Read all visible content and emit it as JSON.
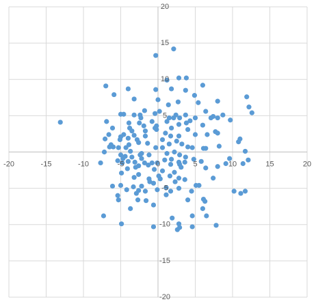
{
  "chart_data": {
    "type": "scatter",
    "color": "#5b9bd5",
    "grid": true,
    "xlim": [
      -20,
      20
    ],
    "ylim": [
      -20,
      20
    ],
    "xticks": [
      -20,
      -15,
      -10,
      -5,
      0,
      5,
      10,
      15,
      20
    ],
    "yticks": [
      -20,
      -15,
      -10,
      -5,
      5,
      10,
      15,
      20
    ],
    "x": [
      2.1,
      -0.3,
      2.8,
      3.8,
      1.2,
      -7.0,
      6.0,
      1.8,
      -4.0,
      3.7,
      -0.3,
      -5.9,
      11.9,
      4.9,
      -3.2,
      0,
      8.0,
      2.7,
      5.4,
      1.4,
      12.2,
      -1.8,
      6.4,
      12.6,
      0.2,
      -0.4,
      -5.0,
      -4.6,
      -2.4,
      2.4,
      -3.2,
      3.7,
      8.7,
      7.4,
      -2.3,
      2.9,
      7.1,
      8.0,
      1.5,
      2.1,
      5.0,
      9.7,
      -6.9,
      -13.1,
      4.3,
      3.8,
      -0.8,
      1.2,
      -2.5,
      -3.9,
      2.8,
      6.0,
      -0.2,
      -1.9,
      -6.1,
      -3.8,
      -0.4,
      1.8,
      -3.5,
      -1.7,
      -0.2,
      4.0,
      7.7,
      8.0,
      1.0,
      -6.6,
      -4.6,
      -3.2,
      5.0,
      6.6,
      -1.7,
      1.7,
      2.8,
      -5.0,
      -4.0,
      11.0,
      -7.1,
      -5.1,
      -2.8,
      0.6,
      2.5,
      10.8,
      -2.6,
      -1.4,
      1.5,
      3.2,
      -3.9,
      8.2,
      -6.3,
      -6.5,
      -5.3,
      -4.3,
      -6.0,
      -0.3,
      0.6,
      4.0,
      4.6,
      6.1,
      6.4,
      -3.7,
      11.7,
      -7.2,
      2.2,
      -2.2,
      1.2,
      -5.0,
      -2.4,
      -1.2,
      2.9,
      3.7,
      -4.4,
      -3.5,
      -4.7,
      -2.2,
      1.8,
      4.8,
      0.9,
      9.6,
      -5.4,
      -4.0,
      12.1,
      5.8,
      -7.7,
      -0.1,
      -4.8,
      -3.1,
      -1.8,
      -0.8,
      2.8,
      3.6,
      9.1,
      11.4,
      -2.6,
      1.7,
      2.9,
      -1.3,
      -3.0,
      -4.1,
      3.1,
      -0.5,
      8.0,
      6.4,
      2.2,
      0.6,
      -4.9,
      0.1,
      -2.6,
      -3.2,
      1.6,
      2.8,
      -1.2,
      3.6,
      7.4,
      0.3,
      -1.1,
      2.3,
      -0.6,
      -6.1,
      -5.0,
      5.1,
      5.5,
      -2.2,
      -3.3,
      1.1,
      2.8,
      -0.1,
      -4.2,
      -2.6,
      -1.7,
      1.7,
      4.5,
      10.2,
      11.7,
      -2.9,
      11.1,
      1.1,
      -5.4,
      6.1,
      -5.3,
      -2.7,
      -1.6,
      4.0,
      6.3,
      -0.6,
      -3.7,
      6.0,
      -7.3,
      6.5,
      1.9,
      4.6,
      -4.9,
      2.8,
      7.8,
      -0.6,
      2.9,
      4.6,
      2.6
    ],
    "values": [
      14.2,
      13.3,
      10.2,
      10.2,
      9.9,
      9.1,
      9.2,
      8.7,
      8.7,
      8.5,
      8.6,
      7.9,
      7.6,
      7.8,
      7.3,
      7.2,
      7.0,
      6.9,
      6.8,
      6.5,
      6.2,
      5.7,
      5.6,
      5.4,
      5.6,
      5.3,
      5.2,
      5.2,
      5.1,
      5.1,
      5.1,
      5.1,
      5.1,
      4.9,
      4.7,
      4.7,
      4.7,
      4.7,
      4.7,
      4.7,
      4.7,
      4.4,
      4.2,
      4.1,
      4.3,
      4.0,
      4.2,
      4.2,
      4.0,
      4.0,
      3.8,
      3.7,
      3.6,
      3.6,
      3.3,
      3.3,
      3.3,
      3.3,
      2.9,
      2.9,
      3.1,
      3.1,
      2.8,
      2.6,
      2.6,
      2.4,
      2.4,
      2.3,
      2.4,
      2.4,
      2.2,
      2.2,
      2.2,
      2.1,
      1.9,
      1.8,
      1.8,
      1.7,
      1.7,
      1.7,
      1.5,
      1.4,
      1.3,
      1.2,
      1.1,
      1.1,
      1.0,
      0.8,
      1.0,
      0.7,
      0.6,
      0.6,
      0.7,
      0.6,
      0.6,
      0.7,
      0.6,
      0.5,
      0.5,
      0.1,
      0.1,
      0.0,
      0.0,
      -0.2,
      -0.2,
      -0.4,
      -0.4,
      -0.4,
      -0.4,
      -0.7,
      -0.6,
      -0.7,
      -0.9,
      -0.9,
      -1.0,
      -1.0,
      -1.1,
      -0.9,
      -1.2,
      -1.3,
      -1.1,
      -1.3,
      -1.5,
      -1.5,
      -1.5,
      -1.4,
      -1.5,
      -1.5,
      -1.4,
      -1.4,
      -1.6,
      -1.6,
      -1.9,
      -1.7,
      -1.7,
      -1.8,
      -2.1,
      -2.3,
      -2.1,
      -2.4,
      -2.0,
      -2.2,
      -2.8,
      -2.6,
      -2.9,
      -3.3,
      -3.1,
      -3.5,
      -3.3,
      -3.6,
      -3.7,
      -3.8,
      -3.6,
      -3.7,
      -4.1,
      -4.1,
      -4.3,
      -4.7,
      -4.6,
      -4.6,
      -4.6,
      -4.7,
      -4.8,
      -4.9,
      -5.0,
      -5.2,
      -5.2,
      -5.3,
      -5.4,
      -5.4,
      -5.4,
      -5.4,
      -5.4,
      -5.7,
      -5.7,
      -5.9,
      -6.0,
      -6.5,
      -6.6,
      -6.6,
      -6.7,
      -6.6,
      -6.8,
      -7.3,
      -7.8,
      -7.8,
      -8.8,
      -8.8,
      -9.1,
      -8.8,
      -9.9,
      -9.9,
      -10.1,
      -10.3,
      -10.4,
      -10.3,
      -10.7
    ]
  }
}
